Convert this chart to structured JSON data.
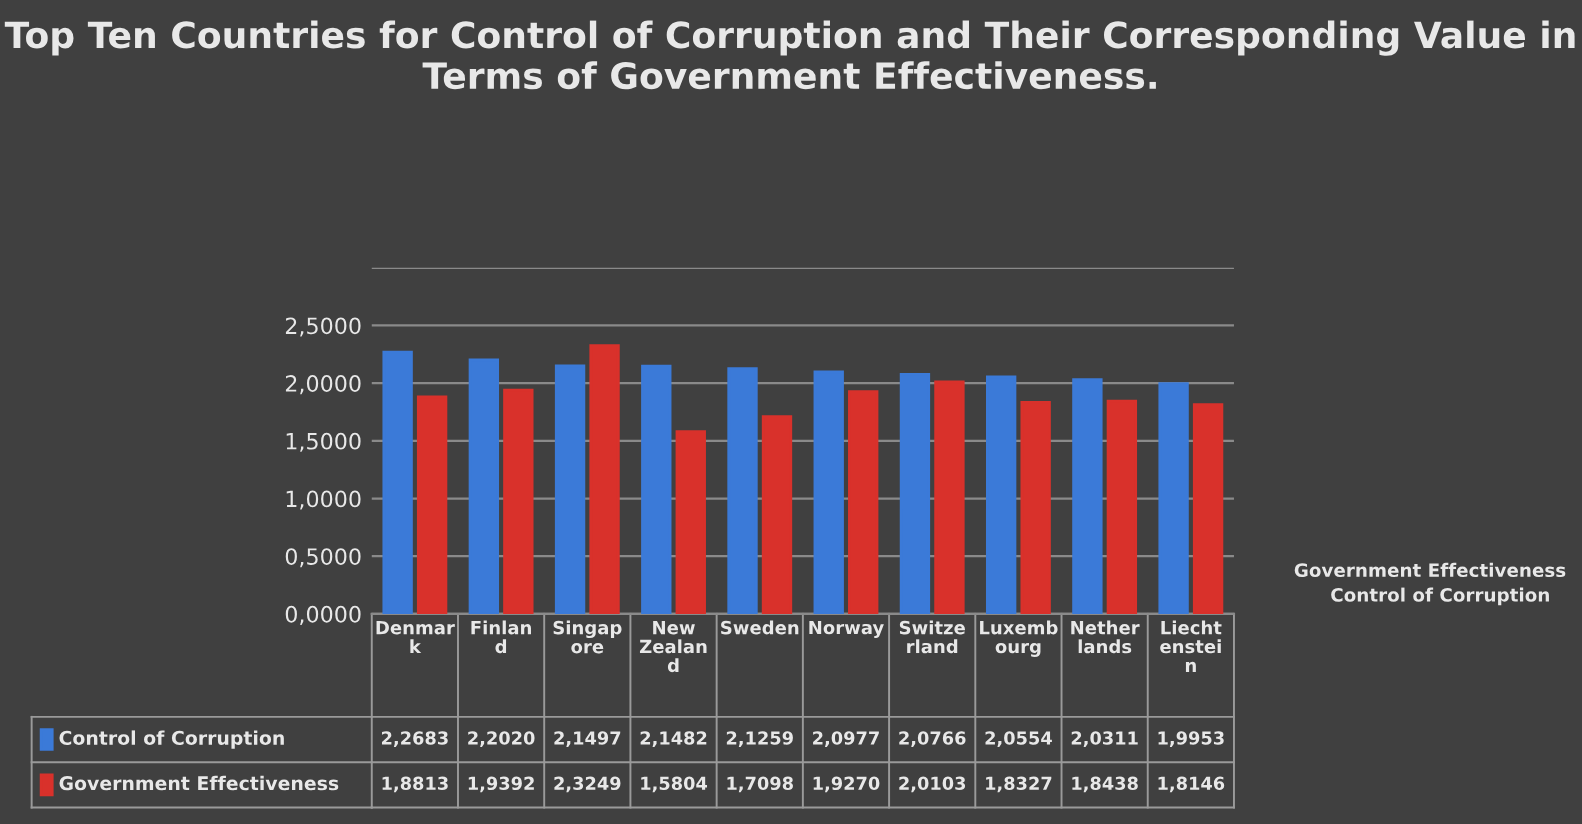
{
  "chart_data": {
    "type": "bar",
    "title": "Top Ten Countries for Control of Corruption and Their Corresponding Value in Terms of Government Effectiveness.",
    "categories": [
      "Denmark",
      "Finland",
      "Singapore",
      "New Zealand",
      "Sweden",
      "Norway",
      "Switzerland",
      "Luxembourg",
      "Netherlands",
      "Liechtenstein"
    ],
    "series": [
      {
        "name": "Control of Corruption",
        "color": "#3b7ad8",
        "values": [
          2.2683,
          2.202,
          2.1497,
          2.1482,
          2.1259,
          2.0977,
          2.0766,
          2.0554,
          2.0311,
          1.9953
        ],
        "value_labels": [
          "2,2683",
          "2,2020",
          "2,1497",
          "2,1482",
          "2,1259",
          "2,0977",
          "2,0766",
          "2,0554",
          "2,0311",
          "1,9953"
        ]
      },
      {
        "name": "Government Effectiveness",
        "color": "#d9312b",
        "values": [
          1.8813,
          1.9392,
          2.3249,
          1.5804,
          1.7098,
          1.927,
          2.0103,
          1.8327,
          1.8438,
          1.8146
        ],
        "value_labels": [
          "1,8813",
          "1,9392",
          "2,3249",
          "1,5804",
          "1,7098",
          "1,9270",
          "2,0103",
          "1,8327",
          "1,8438",
          "1,8146"
        ]
      }
    ],
    "ylim": [
      0,
      3
    ],
    "yticks": [
      {
        "value": 0,
        "label": "0,0000"
      },
      {
        "value": 0.5,
        "label": "0,5000"
      },
      {
        "value": 1,
        "label": "1,0000"
      },
      {
        "value": 1.5,
        "label": "1,5000"
      },
      {
        "value": 2,
        "label": "2,0000"
      },
      {
        "value": 2.5,
        "label": "2,5000"
      },
      {
        "value": 3,
        "label": null
      }
    ],
    "grid": "y",
    "legend": "bottom"
  }
}
